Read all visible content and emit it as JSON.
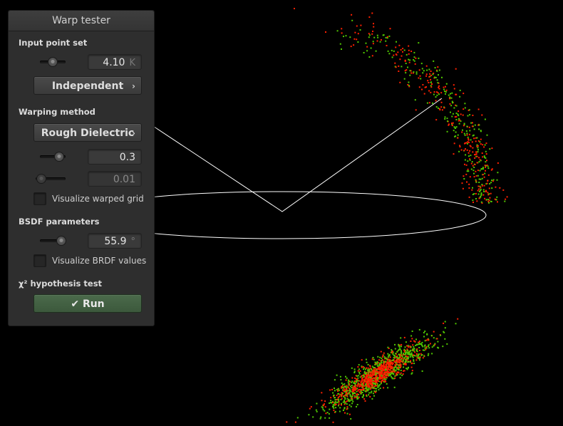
{
  "panel": {
    "title": "Warp tester",
    "input_section": "Input point set",
    "point_count": {
      "value": "4.10",
      "unit": "K",
      "slider_fraction": 0.5
    },
    "point_type_button": "Independent",
    "warp_section": "Warping method",
    "warp_method_button": "Rough Dielectric",
    "param1": {
      "value": "0.3",
      "slider_fraction": 0.6
    },
    "param2": {
      "value": "0.01",
      "slider_fraction": 0.05
    },
    "visualize_grid_label": "Visualize warped grid",
    "bsdf_section": "BSDF parameters",
    "bsdf_angle": {
      "value": "55.9",
      "unit": "°",
      "slider_fraction": 0.8
    },
    "visualize_brdf_label": "Visualize BRDF values",
    "chi2_section": "χ² hypothesis test",
    "run_button": "Run"
  },
  "colors": {
    "background": "#000000",
    "panel": "#2e2e2e",
    "point_red": "#ff2000",
    "point_green": "#50c800",
    "run_green": "#3f5f3f"
  },
  "icons": {
    "run": "check-icon",
    "dropdown": "chevron-right-icon"
  }
}
